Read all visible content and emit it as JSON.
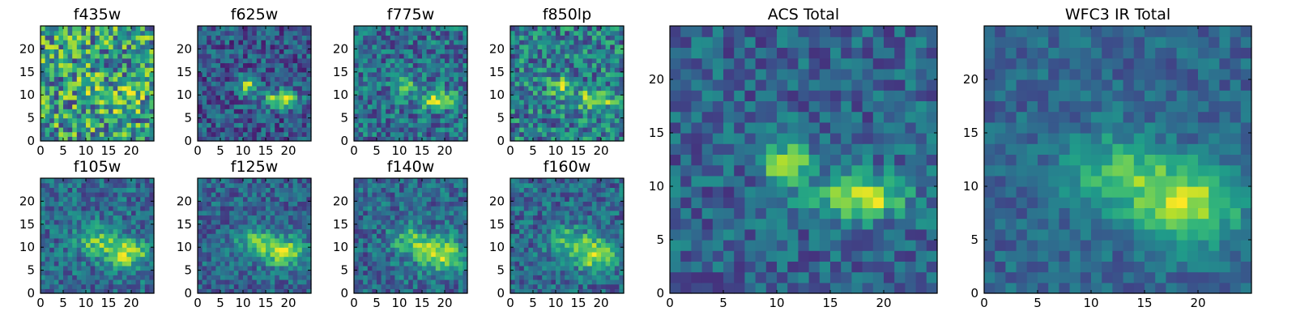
{
  "figure": {
    "colormap": "viridis",
    "colormap_stops": [
      "#440154",
      "#482878",
      "#3e4989",
      "#31688e",
      "#26828e",
      "#1f9e89",
      "#35b779",
      "#6ece58",
      "#b5de2b",
      "#fde725"
    ]
  },
  "chart_data": [
    {
      "type": "heatmap",
      "title": "f435w",
      "grid_size": 25,
      "xlim": [
        0,
        25
      ],
      "ylim": [
        0,
        25
      ],
      "xticks": [
        0,
        5,
        10,
        15,
        20
      ],
      "yticks": [
        0,
        5,
        10,
        15,
        20
      ],
      "background_level": 0.55,
      "noise_level": 0.38,
      "noise_seed": 11,
      "sources": [
        {
          "x": 11.5,
          "y": 12.0,
          "sx": 2.0,
          "sy": 2.0,
          "amp": 0.1
        },
        {
          "x": 18.0,
          "y": 9.0,
          "sx": 3.0,
          "sy": 1.8,
          "amp": 0.18
        }
      ]
    },
    {
      "type": "heatmap",
      "title": "f625w",
      "grid_size": 25,
      "xlim": [
        0,
        25
      ],
      "ylim": [
        0,
        25
      ],
      "xticks": [
        0,
        5,
        10,
        15,
        20
      ],
      "yticks": [
        0,
        5,
        10,
        15,
        20
      ],
      "background_level": 0.28,
      "noise_level": 0.22,
      "noise_seed": 23,
      "sources": [
        {
          "x": 11.0,
          "y": 12.0,
          "sx": 1.5,
          "sy": 1.4,
          "amp": 0.55
        },
        {
          "x": 18.5,
          "y": 9.0,
          "sx": 2.6,
          "sy": 1.3,
          "amp": 0.62
        }
      ]
    },
    {
      "type": "heatmap",
      "title": "f775w",
      "grid_size": 25,
      "xlim": [
        0,
        25
      ],
      "ylim": [
        0,
        25
      ],
      "xticks": [
        0,
        5,
        10,
        15,
        20
      ],
      "yticks": [
        0,
        5,
        10,
        15,
        20
      ],
      "background_level": 0.36,
      "noise_level": 0.24,
      "noise_seed": 37,
      "sources": [
        {
          "x": 11.0,
          "y": 12.0,
          "sx": 1.5,
          "sy": 1.4,
          "amp": 0.42
        },
        {
          "x": 18.5,
          "y": 9.0,
          "sx": 2.8,
          "sy": 1.4,
          "amp": 0.55
        }
      ]
    },
    {
      "type": "heatmap",
      "title": "f850lp",
      "grid_size": 25,
      "xlim": [
        0,
        25
      ],
      "ylim": [
        0,
        25
      ],
      "xticks": [
        0,
        5,
        10,
        15,
        20
      ],
      "yticks": [
        0,
        5,
        10,
        15,
        20
      ],
      "background_level": 0.42,
      "noise_level": 0.28,
      "noise_seed": 41,
      "sources": [
        {
          "x": 11.0,
          "y": 12.0,
          "sx": 1.6,
          "sy": 1.4,
          "amp": 0.38
        },
        {
          "x": 18.5,
          "y": 9.0,
          "sx": 3.0,
          "sy": 1.5,
          "amp": 0.45
        }
      ]
    },
    {
      "type": "heatmap",
      "title": "f105w",
      "grid_size": 25,
      "xlim": [
        0,
        25
      ],
      "ylim": [
        0,
        25
      ],
      "xticks": [
        0,
        5,
        10,
        15,
        20
      ],
      "yticks": [
        0,
        5,
        10,
        15,
        20
      ],
      "background_level": 0.35,
      "noise_level": 0.2,
      "noise_seed": 53,
      "sources": [
        {
          "x": 12.0,
          "y": 11.5,
          "sx": 3.0,
          "sy": 2.2,
          "amp": 0.35
        },
        {
          "x": 19.0,
          "y": 9.0,
          "sx": 3.4,
          "sy": 2.2,
          "amp": 0.55
        }
      ]
    },
    {
      "type": "heatmap",
      "title": "f125w",
      "grid_size": 25,
      "xlim": [
        0,
        25
      ],
      "ylim": [
        0,
        25
      ],
      "xticks": [
        0,
        5,
        10,
        15,
        20
      ],
      "yticks": [
        0,
        5,
        10,
        15,
        20
      ],
      "background_level": 0.32,
      "noise_level": 0.18,
      "noise_seed": 67,
      "sources": [
        {
          "x": 12.5,
          "y": 11.5,
          "sx": 3.0,
          "sy": 2.1,
          "amp": 0.35
        },
        {
          "x": 19.0,
          "y": 9.0,
          "sx": 3.4,
          "sy": 2.2,
          "amp": 0.55
        }
      ]
    },
    {
      "type": "heatmap",
      "title": "f140w",
      "grid_size": 25,
      "xlim": [
        0,
        25
      ],
      "ylim": [
        0,
        25
      ],
      "xticks": [
        0,
        5,
        10,
        15,
        20
      ],
      "yticks": [
        0,
        5,
        10,
        15,
        20
      ],
      "background_level": 0.34,
      "noise_level": 0.2,
      "noise_seed": 79,
      "sources": [
        {
          "x": 12.5,
          "y": 11.5,
          "sx": 3.0,
          "sy": 2.2,
          "amp": 0.35
        },
        {
          "x": 19.0,
          "y": 8.5,
          "sx": 3.4,
          "sy": 2.4,
          "amp": 0.58
        }
      ]
    },
    {
      "type": "heatmap",
      "title": "f160w",
      "grid_size": 25,
      "xlim": [
        0,
        25
      ],
      "ylim": [
        0,
        25
      ],
      "xticks": [
        0,
        5,
        10,
        15,
        20
      ],
      "yticks": [
        0,
        5,
        10,
        15,
        20
      ],
      "background_level": 0.34,
      "noise_level": 0.2,
      "noise_seed": 83,
      "sources": [
        {
          "x": 12.5,
          "y": 11.5,
          "sx": 3.0,
          "sy": 2.2,
          "amp": 0.35
        },
        {
          "x": 19.0,
          "y": 8.5,
          "sx": 3.4,
          "sy": 2.4,
          "amp": 0.58
        }
      ]
    },
    {
      "type": "heatmap",
      "title": "ACS Total",
      "grid_size": 25,
      "xlim": [
        0,
        25
      ],
      "ylim": [
        0,
        25
      ],
      "xticks": [
        0,
        5,
        10,
        15,
        20
      ],
      "yticks": [
        0,
        5,
        10,
        15,
        20
      ],
      "background_level": 0.32,
      "noise_level": 0.18,
      "noise_seed": 97,
      "sources": [
        {
          "x": 11.0,
          "y": 12.0,
          "sx": 1.5,
          "sy": 1.5,
          "amp": 0.58
        },
        {
          "x": 18.0,
          "y": 9.0,
          "sx": 2.8,
          "sy": 1.4,
          "amp": 0.6
        }
      ]
    },
    {
      "type": "heatmap",
      "title": "WFC3 IR Total",
      "grid_size": 25,
      "xlim": [
        0,
        25
      ],
      "ylim": [
        0,
        25
      ],
      "xticks": [
        0,
        5,
        10,
        15,
        20
      ],
      "yticks": [
        0,
        5,
        10,
        15,
        20
      ],
      "background_level": 0.33,
      "noise_level": 0.13,
      "noise_seed": 101,
      "sources": [
        {
          "x": 12.5,
          "y": 11.5,
          "sx": 3.2,
          "sy": 2.4,
          "amp": 0.35
        },
        {
          "x": 19.0,
          "y": 8.5,
          "sx": 3.6,
          "sy": 2.6,
          "amp": 0.55
        }
      ]
    }
  ]
}
